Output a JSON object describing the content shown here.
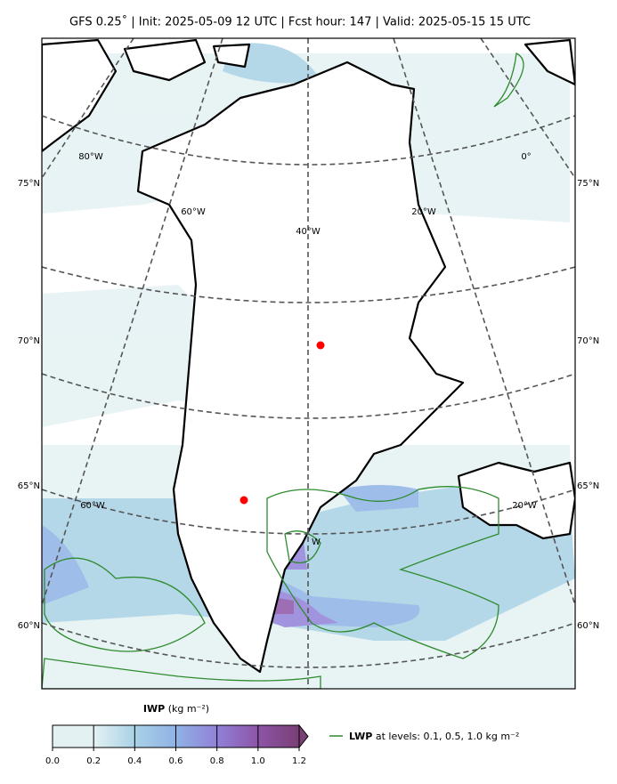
{
  "title": "GFS 0.25˚  |  Init: 2025-05-09 12 UTC  |  Fcst hour: 147  |  Valid: 2025-05-15 15 UTC",
  "lat_labels": [
    "75°N",
    "70°N",
    "65°N",
    "60°N"
  ],
  "lon_labels": [
    "80°W",
    "60°W",
    "40°W",
    "20°W",
    "0°",
    "60°W",
    "20°W",
    "W"
  ],
  "colorbar": {
    "name": "IWP",
    "unit": "(kg m⁻²)",
    "ticks": [
      {
        "value": 0,
        "label": "0.0"
      },
      0.2,
      0.4,
      0.6,
      0.8,
      {
        "value": 1,
        "label": "1.0"
      },
      1.2
    ],
    "lim": [
      0,
      1.2
    ],
    "colors": [
      "#e4f1f3",
      "#a9d2e6",
      "#8fb2e6",
      "#9181d8",
      "#8c55a8",
      "#7a3f74"
    ]
  },
  "legend": {
    "name": "LWP",
    "text": "at levels: 0.1, 0.5, 1.0  kg m⁻²",
    "color": "#2e8b2e"
  }
}
